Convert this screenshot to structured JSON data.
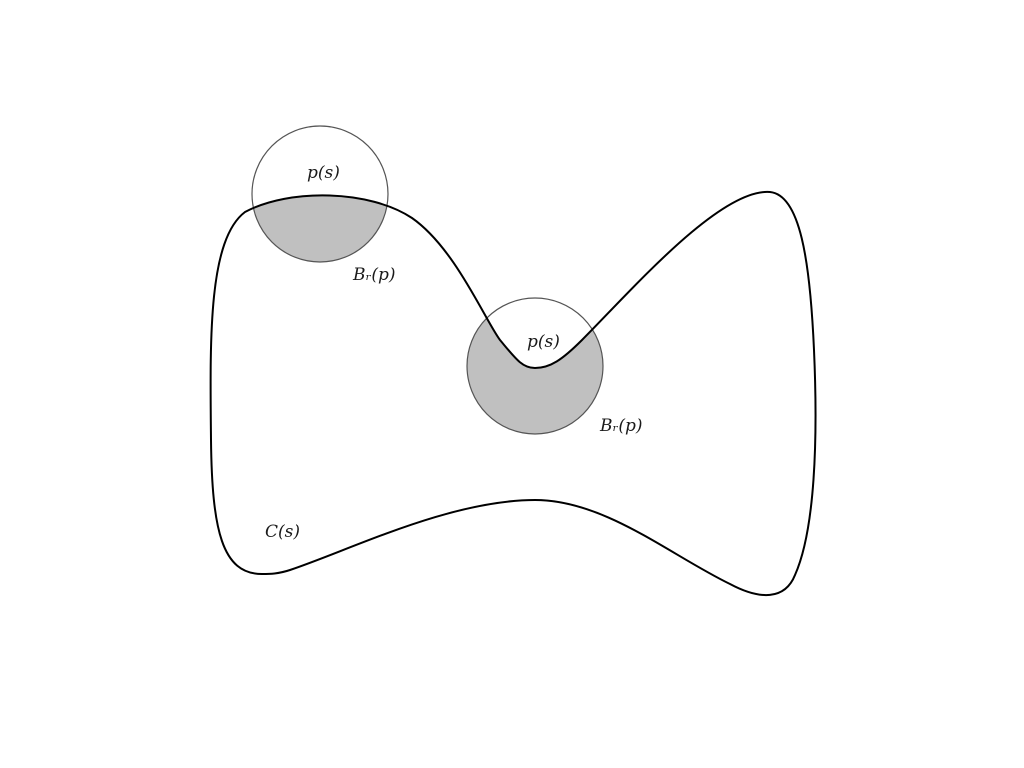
{
  "diagram": {
    "colors": {
      "curve": "#000000",
      "ball_outline": "#555555",
      "ball_fill": "#c0c0c0",
      "background": "#ffffff"
    },
    "curve_label": "C(s)",
    "balls": [
      {
        "point_label": "p(s)",
        "ball_label": "Bᵣ(p)"
      },
      {
        "point_label": "p(s)",
        "ball_label": "Bᵣ(p)"
      }
    ]
  }
}
